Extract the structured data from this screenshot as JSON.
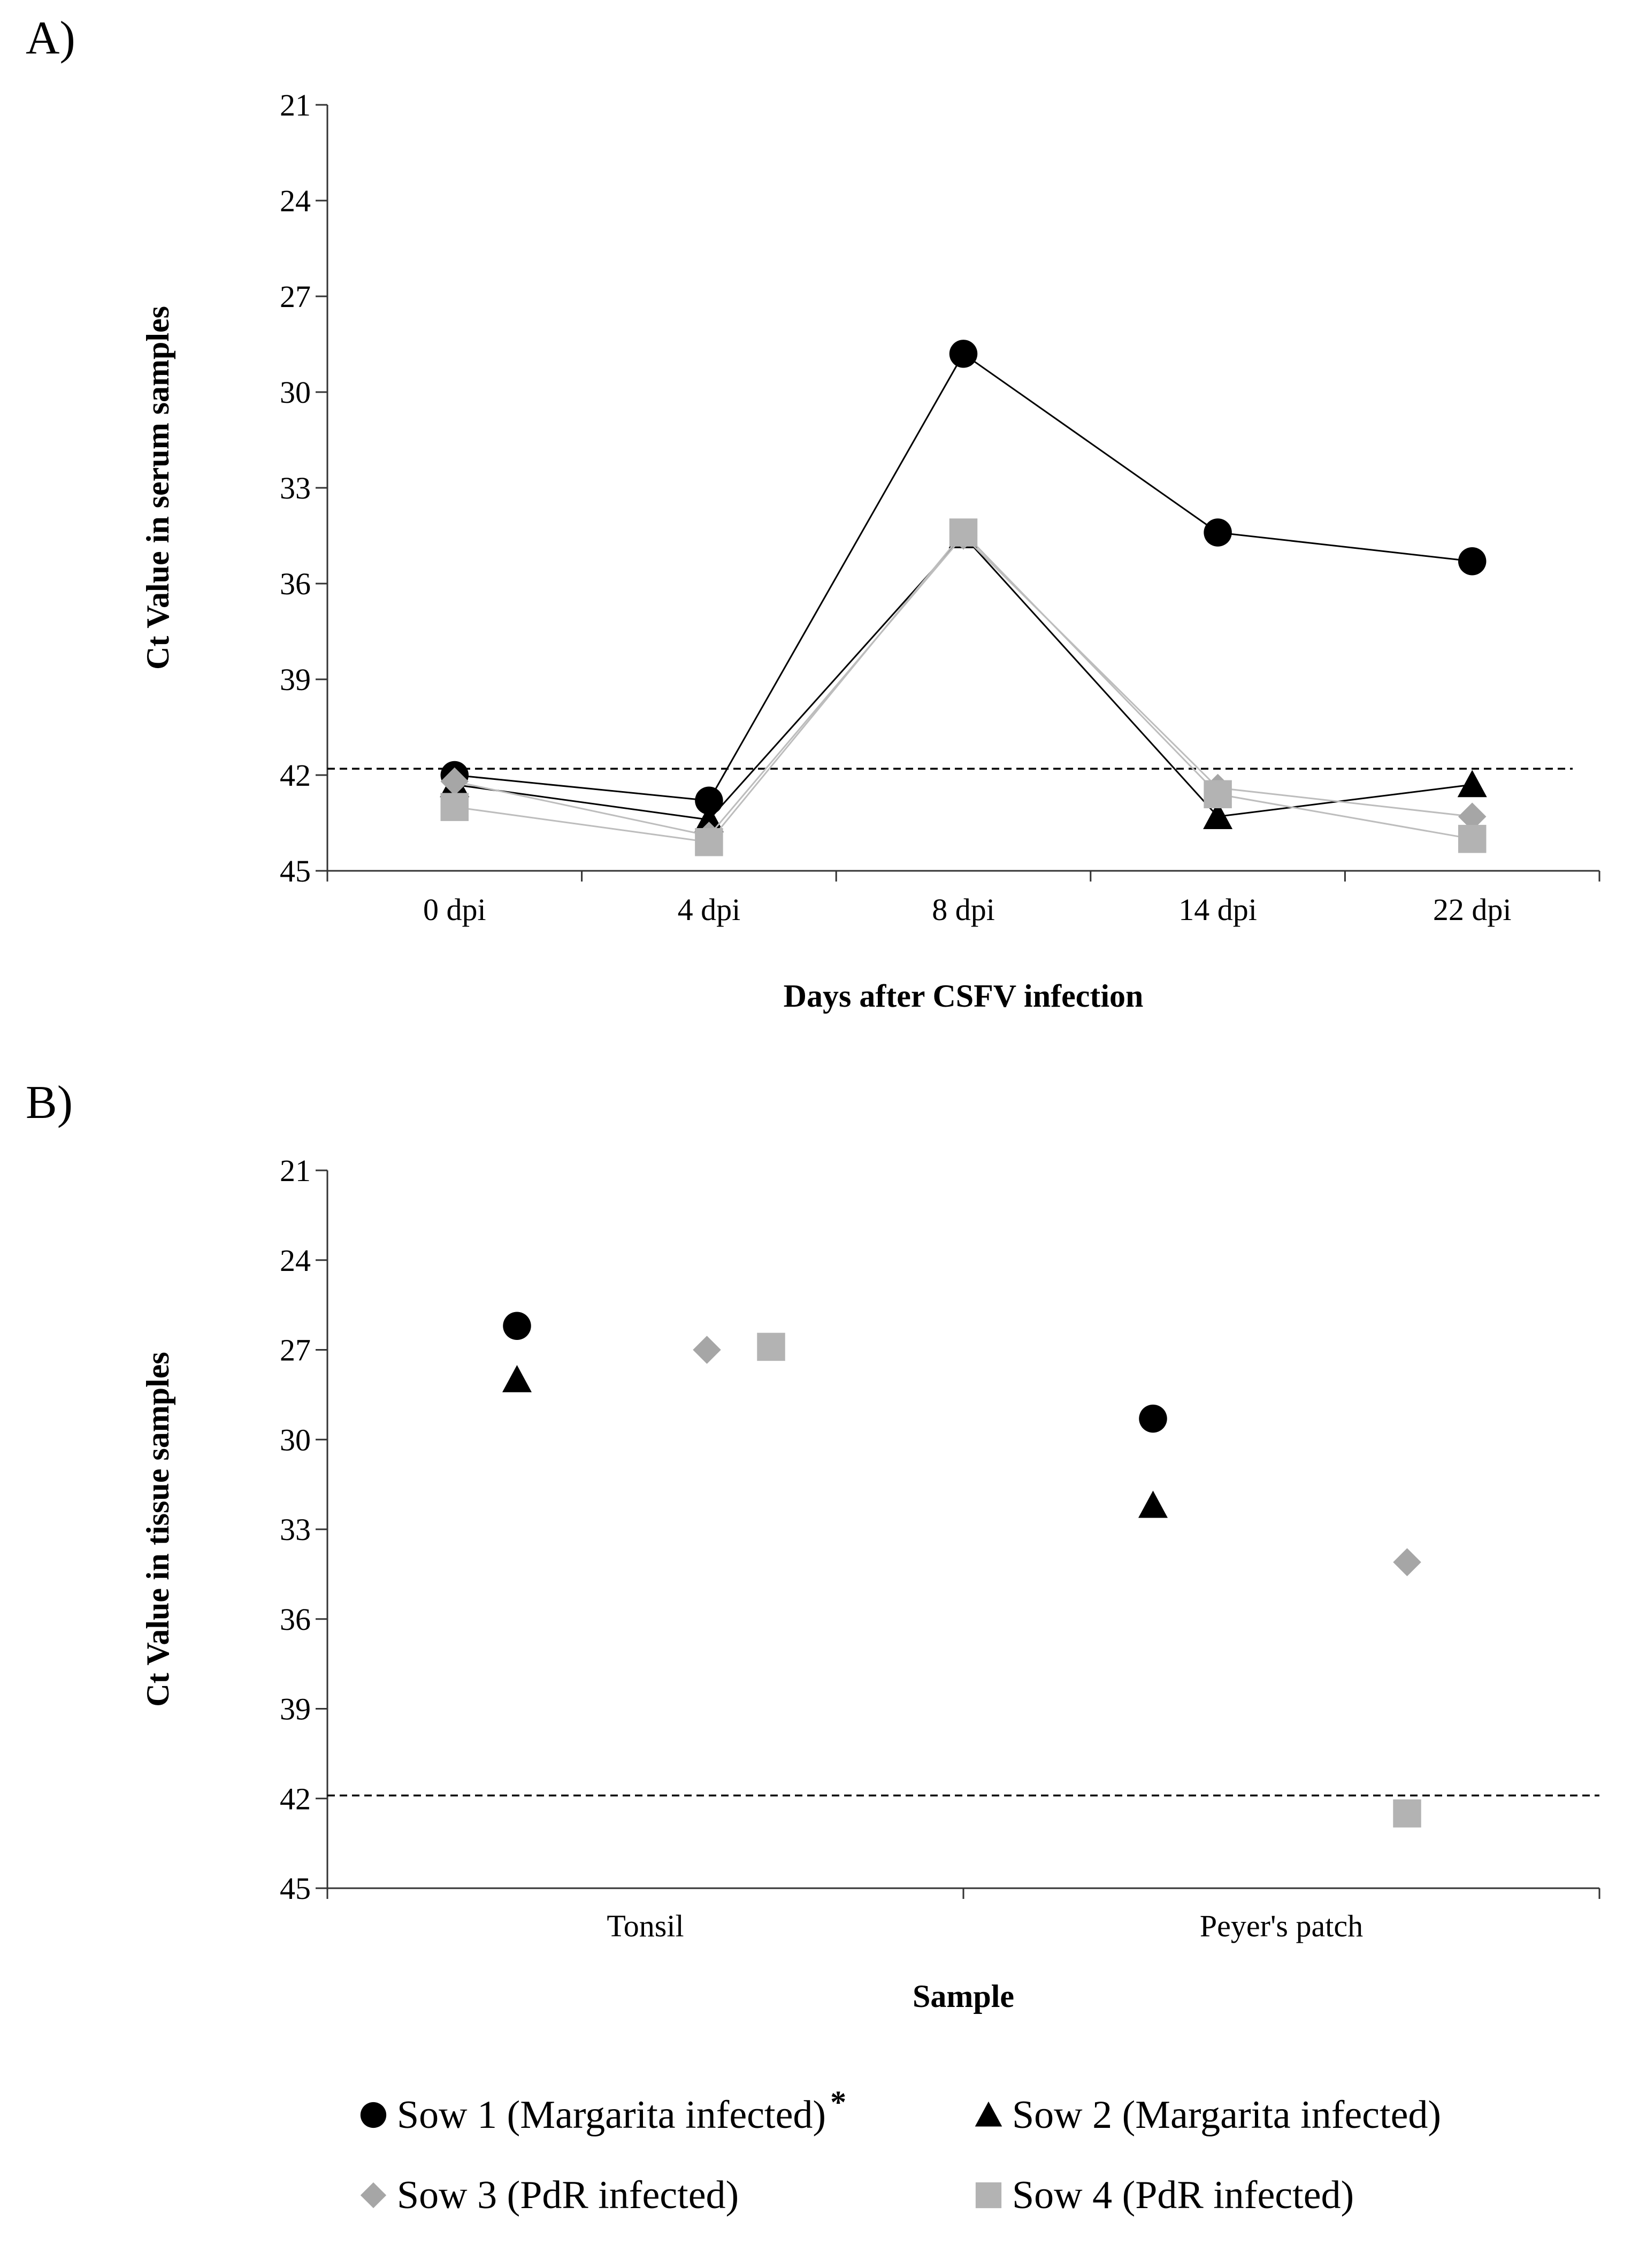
{
  "panels": [
    {
      "id": "A",
      "panel_label": "A)",
      "xlabel": "Days after CSFV infection",
      "ylabel": "Ct Value in serum samples"
    },
    {
      "id": "B",
      "panel_label": "B)",
      "xlabel": "Sample",
      "ylabel": "Ct Value in tissue samples"
    }
  ],
  "legend": [
    {
      "label": "Sow 1 (Margarita infected)",
      "marker": "circle",
      "color": "#000000",
      "footnote_mark": "*"
    },
    {
      "label": "Sow 2 (Margarita infected)",
      "marker": "triangle",
      "color": "#000000"
    },
    {
      "label": "Sow 3 (PdR infected)",
      "marker": "diamond",
      "color": "#a6a6a6"
    },
    {
      "label": "Sow 4 (PdR infected)",
      "marker": "square",
      "color": "#b3b3b3"
    }
  ],
  "chart_data": [
    {
      "type": "line",
      "categories": [
        "0 dpi",
        "4 dpi",
        "8 dpi",
        "14 dpi",
        "22 dpi"
      ],
      "xlabel": "Days after CSFV infection",
      "ylabel": "Ct Value in serum samples",
      "ylim": [
        21,
        45
      ],
      "y_inverted": true,
      "yticks": [
        21,
        24,
        27,
        30,
        33,
        36,
        39,
        42,
        45
      ],
      "threshold": 41.8,
      "grid": false,
      "series": [
        {
          "name": "Sow 1 (Margarita infected)",
          "marker": "circle",
          "color": "#000000",
          "line_color": "#000000",
          "values": [
            42.0,
            42.8,
            28.8,
            34.4,
            35.3
          ]
        },
        {
          "name": "Sow 2 (Margarita infected)",
          "marker": "triangle",
          "color": "#000000",
          "line_color": "#000000",
          "values": [
            42.3,
            43.4,
            34.5,
            43.3,
            42.3
          ]
        },
        {
          "name": "Sow 3 (PdR infected)",
          "marker": "diamond",
          "color": "#a6a6a6",
          "line_color": "#bdbdbd",
          "values": [
            42.2,
            43.9,
            34.5,
            42.4,
            43.3
          ]
        },
        {
          "name": "Sow 4 (PdR infected)",
          "marker": "square",
          "color": "#b3b3b3",
          "line_color": "#bdbdbd",
          "values": [
            43.0,
            44.1,
            34.4,
            42.6,
            44.0
          ]
        }
      ]
    },
    {
      "type": "scatter",
      "categories": [
        "Tonsil",
        "Peyer's patch"
      ],
      "xlabel": "Sample",
      "ylabel": "Ct Value in tissue samples",
      "ylim": [
        21,
        45
      ],
      "y_inverted": true,
      "yticks": [
        21,
        24,
        27,
        30,
        33,
        36,
        39,
        42,
        45
      ],
      "threshold": 41.9,
      "grid": false,
      "series": [
        {
          "name": "Sow 1 (Margarita infected)",
          "marker": "circle",
          "color": "#000000",
          "values": [
            26.2,
            29.3
          ]
        },
        {
          "name": "Sow 2 (Margarita infected)",
          "marker": "triangle",
          "color": "#000000",
          "values": [
            28.0,
            32.2
          ]
        },
        {
          "name": "Sow 3 (PdR infected)",
          "marker": "diamond",
          "color": "#a6a6a6",
          "values": [
            27.0,
            34.1
          ]
        },
        {
          "name": "Sow 4 (PdR infected)",
          "marker": "square",
          "color": "#b3b3b3",
          "values": [
            26.9,
            42.5
          ]
        }
      ]
    }
  ]
}
